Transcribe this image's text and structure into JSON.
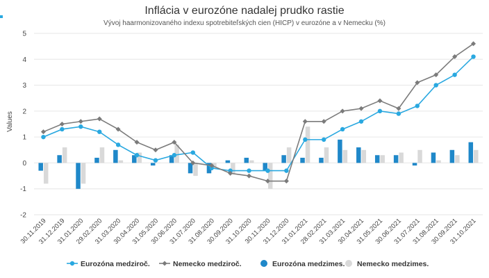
{
  "chart_data": {
    "type": "bar",
    "title": "Inflácia v eurozóne nadalej prudko rastie",
    "subtitle": "Vývoj haarmonizovaného indexu spotrebiteľských cien (HICP) v eurozóne a v Nemecku (%)",
    "ylabel": "Values",
    "xlabel": "",
    "ylim": [
      -2,
      5
    ],
    "yticks": [
      -2,
      -1,
      0,
      1,
      2,
      3,
      4,
      5
    ],
    "grid": true,
    "legend_position": "bottom",
    "categories": [
      "30.11.2019",
      "31.12.2019",
      "31.01.2020",
      "29.02.2020",
      "31.03.2020",
      "30.04.2020",
      "31.05.2020",
      "30.06.2020",
      "31.07.2020",
      "31.08.2020",
      "30.09.2020",
      "31.10.2020",
      "30.11.2020",
      "31.12.2020",
      "31.01.2021",
      "28.02.2021",
      "31.03.2021",
      "30.04.2021",
      "31.05.2021",
      "30.06.2021",
      "31.07.2021",
      "31.08.2021",
      "30.09.2021",
      "31.10.2021"
    ],
    "series": [
      {
        "name": "Eurozóna medziroč.",
        "kind": "line",
        "color": "#29a8e0",
        "marker": "circle",
        "values": [
          1.0,
          1.3,
          1.4,
          1.2,
          0.7,
          0.3,
          0.1,
          0.3,
          0.4,
          -0.2,
          -0.3,
          -0.3,
          -0.3,
          -0.3,
          0.9,
          0.9,
          1.3,
          1.6,
          2.0,
          1.9,
          2.2,
          3.0,
          3.4,
          4.1
        ]
      },
      {
        "name": "Nemecko medziroč.",
        "kind": "line",
        "color": "#7b7b7b",
        "marker": "diamond",
        "values": [
          1.2,
          1.5,
          1.6,
          1.7,
          1.3,
          0.8,
          0.5,
          0.8,
          0.0,
          -0.1,
          -0.4,
          -0.5,
          -0.7,
          -0.7,
          1.6,
          1.6,
          2.0,
          2.1,
          2.4,
          2.1,
          3.1,
          3.4,
          4.1,
          4.6
        ]
      },
      {
        "name": "Eurozóna medzimes.",
        "kind": "bar",
        "color": "#1f88c9",
        "values": [
          -0.3,
          0.3,
          -1.0,
          0.2,
          0.5,
          0.3,
          -0.1,
          0.3,
          -0.4,
          -0.4,
          0.1,
          0.2,
          -0.3,
          0.3,
          0.2,
          0.2,
          0.9,
          0.6,
          0.3,
          0.3,
          -0.1,
          0.4,
          0.5,
          0.8
        ]
      },
      {
        "name": "Nemecko medzimes.",
        "kind": "bar",
        "color": "#d9d9d9",
        "values": [
          -0.8,
          0.6,
          -0.8,
          0.6,
          0.1,
          0.4,
          0.0,
          0.7,
          -0.5,
          -0.2,
          -0.4,
          0.1,
          -1.0,
          0.6,
          1.4,
          0.6,
          0.5,
          0.5,
          0.3,
          0.4,
          0.5,
          0.1,
          0.3,
          0.5
        ]
      }
    ]
  }
}
